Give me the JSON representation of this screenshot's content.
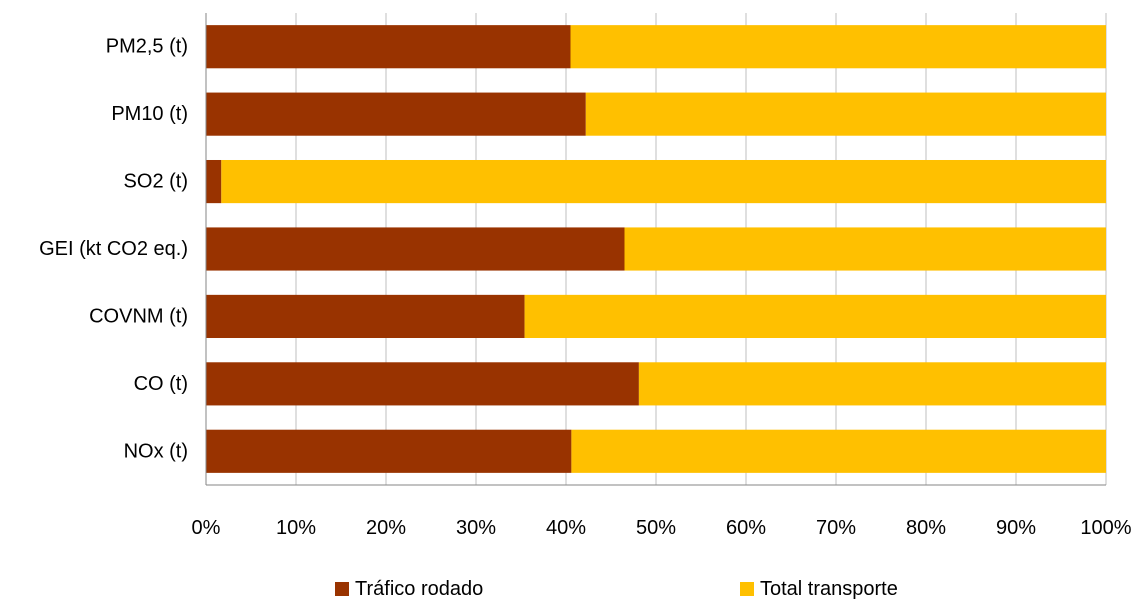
{
  "chart_data": {
    "type": "bar",
    "orientation": "horizontal",
    "stacked": "percent",
    "categories": [
      "PM2,5 (t)",
      "PM10 (t)",
      "SO2 (t)",
      "GEI (kt CO2 eq.)",
      "COVNM (t)",
      "CO (t)",
      "NOx (t)"
    ],
    "series": [
      {
        "name": "Tráfico rodado",
        "color": "#993300",
        "values": [
          40.5,
          42.2,
          1.7,
          46.5,
          35.4,
          48.1,
          40.6
        ]
      },
      {
        "name": "Total transporte",
        "color": "#FFC000",
        "values": [
          59.5,
          57.8,
          98.3,
          53.5,
          64.6,
          51.9,
          59.4
        ]
      }
    ],
    "xlim": [
      0,
      100
    ],
    "x_ticks": [
      "0%",
      "10%",
      "20%",
      "30%",
      "40%",
      "50%",
      "60%",
      "70%",
      "80%",
      "90%",
      "100%"
    ],
    "title": "",
    "xlabel": "",
    "ylabel": "",
    "grid": "vertical",
    "legend": "bottom"
  }
}
